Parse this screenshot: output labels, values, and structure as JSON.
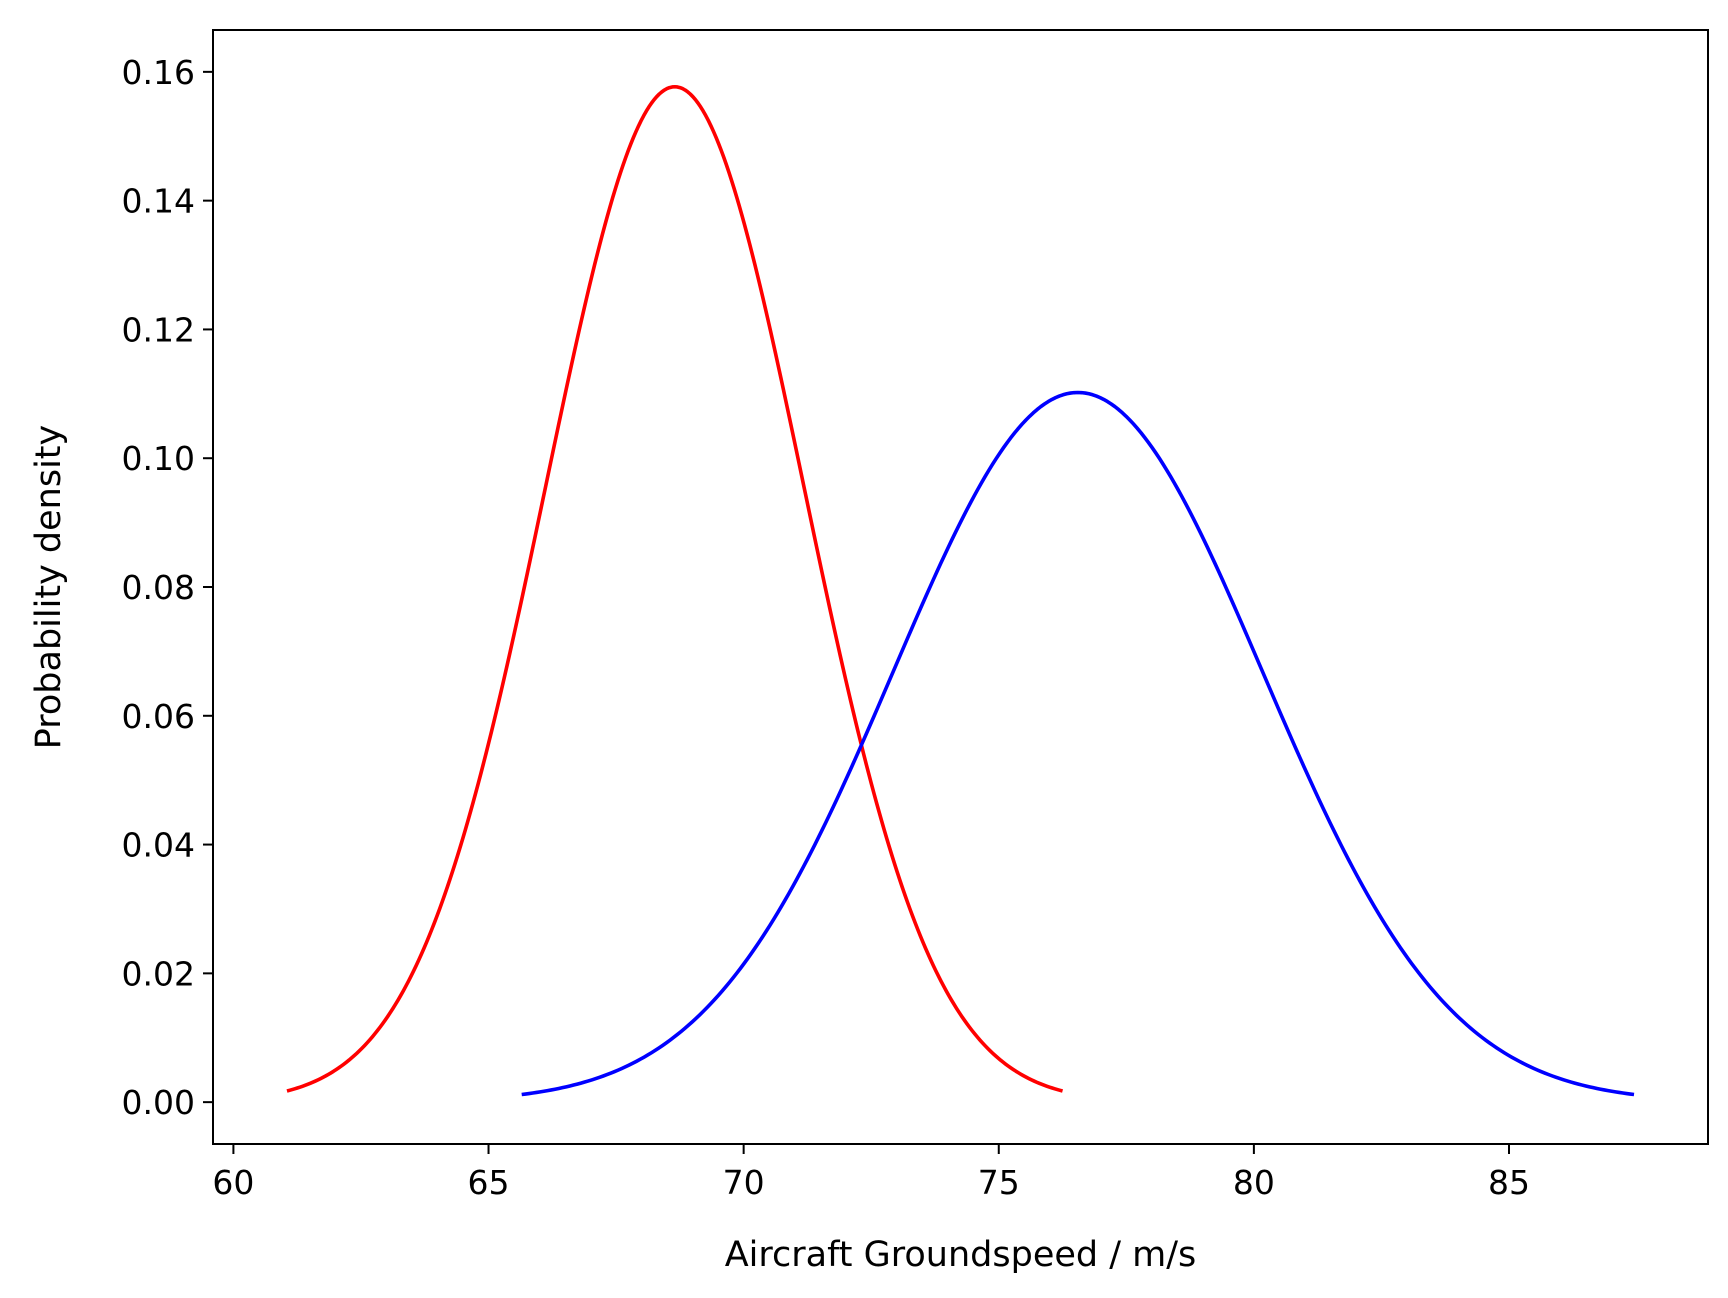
{
  "chart_data": {
    "type": "line",
    "title": "",
    "xlabel": "Aircraft Groundspeed / m/s",
    "ylabel": "Probability density",
    "xlim": [
      59.6,
      88.9
    ],
    "ylim": [
      -0.0065,
      0.1665
    ],
    "xticks": [
      60,
      65,
      70,
      75,
      80,
      85
    ],
    "xtick_labels": [
      "60",
      "65",
      "70",
      "75",
      "80",
      "85"
    ],
    "yticks": [
      0.0,
      0.02,
      0.04,
      0.06,
      0.08,
      0.1,
      0.12,
      0.14,
      0.16
    ],
    "ytick_labels": [
      "0.00",
      "0.02",
      "0.04",
      "0.06",
      "0.08",
      "0.10",
      "0.12",
      "0.14",
      "0.16"
    ],
    "grid": false,
    "legend": null,
    "series": [
      {
        "color": "#ff0000",
        "distribution": "normal",
        "mean": 68.65,
        "std": 2.53,
        "x_range": [
          61.05,
          76.25
        ],
        "x": [
          61.05,
          62.0,
          63.0,
          64.0,
          65.0,
          66.0,
          67.0,
          68.0,
          68.65,
          69.0,
          70.0,
          71.0,
          72.0,
          73.0,
          74.0,
          75.0,
          76.25
        ],
        "y": [
          0.0018,
          0.005,
          0.0148,
          0.0342,
          0.0627,
          0.0968,
          0.1318,
          0.1528,
          0.1577,
          0.1563,
          0.1364,
          0.1033,
          0.0641,
          0.0357,
          0.0167,
          0.0068,
          0.0018
        ]
      },
      {
        "color": "#0000ff",
        "distribution": "normal",
        "mean": 76.55,
        "std": 3.62,
        "x_range": [
          65.65,
          87.45
        ],
        "x": [
          65.65,
          67.0,
          68.0,
          69.0,
          70.0,
          71.0,
          72.0,
          73.0,
          74.0,
          75.0,
          76.0,
          76.55,
          77.0,
          78.0,
          79.0,
          80.0,
          81.0,
          82.0,
          83.0,
          84.0,
          85.0,
          86.0,
          87.45
        ],
        "y": [
          0.0012,
          0.0034,
          0.0068,
          0.0126,
          0.0212,
          0.0326,
          0.0467,
          0.0622,
          0.0772,
          0.0921,
          0.1058,
          0.1101,
          0.1091,
          0.1018,
          0.0878,
          0.0717,
          0.0549,
          0.0396,
          0.0267,
          0.0166,
          0.0094,
          0.0046,
          0.0012
        ]
      }
    ]
  }
}
